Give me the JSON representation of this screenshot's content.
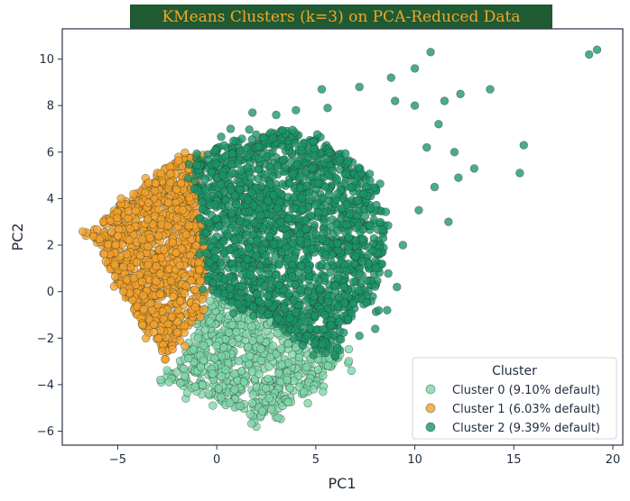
{
  "chart_data": {
    "type": "scatter",
    "title": "KMeans Clusters (k=3) on PCA-Reduced Data",
    "xlabel": "PC1",
    "ylabel": "PC2",
    "xlim": [
      -7.8,
      20.5
    ],
    "ylim": [
      -6.6,
      11.3
    ],
    "xticks": [
      "−5",
      "0",
      "5",
      "10",
      "15",
      "20"
    ],
    "xtick_values": [
      -5,
      0,
      5,
      10,
      15,
      20
    ],
    "yticks": [
      "−6",
      "−4",
      "−2",
      "0",
      "2",
      "4",
      "6",
      "8",
      "10"
    ],
    "ytick_values": [
      -6,
      -4,
      -2,
      0,
      2,
      4,
      6,
      8,
      10
    ],
    "grid": false,
    "legend": {
      "title": "Cluster",
      "placement": "lower-right"
    },
    "series": [
      {
        "name": "Cluster 0 (9.10% default)",
        "color": "#7ed6a8",
        "region": [
          [
            -0.2,
            0.3
          ],
          [
            1.5,
            -0.5
          ],
          [
            3.0,
            -0.8
          ],
          [
            5.0,
            -2.0
          ],
          [
            6.3,
            -2.7
          ],
          [
            5.0,
            -4.1
          ],
          [
            3.0,
            -5.2
          ],
          [
            2.0,
            -5.5
          ],
          [
            0.5,
            -4.8
          ],
          [
            -1.5,
            -4.2
          ],
          [
            -2.6,
            -3.6
          ],
          [
            -1.5,
            -2.5
          ],
          [
            -0.7,
            -1.0
          ]
        ],
        "cloud": [
          [
            2.0,
            -5.8
          ],
          [
            6.8,
            -3.4
          ],
          [
            -2.8,
            -3.9
          ],
          [
            -0.2,
            -4.9
          ],
          [
            4.6,
            -4.8
          ]
        ]
      },
      {
        "name": "Cluster 1 (6.03% default)",
        "color": "#f5a02a",
        "region": [
          [
            -6.4,
            2.5
          ],
          [
            -4.8,
            3.8
          ],
          [
            -3.2,
            4.9
          ],
          [
            -1.9,
            5.8
          ],
          [
            -0.9,
            5.8
          ],
          [
            -1.0,
            4.3
          ],
          [
            -0.6,
            2.5
          ],
          [
            -0.5,
            0.3
          ],
          [
            -0.9,
            -1.0
          ],
          [
            -2.0,
            -2.2
          ],
          [
            -2.5,
            -2.7
          ],
          [
            -3.5,
            -1.8
          ],
          [
            -5.0,
            0.3
          ]
        ],
        "cloud": [
          [
            -6.6,
            2.4
          ],
          [
            -5.6,
            1.3
          ],
          [
            -4.2,
            4.2
          ],
          [
            -3.0,
            5.1
          ],
          [
            -2.6,
            -2.9
          ]
        ]
      },
      {
        "name": "Cluster 2 (9.39% default)",
        "color": "#1a9468",
        "region": [
          [
            -1.1,
            5.8
          ],
          [
            0.5,
            6.4
          ],
          [
            2.0,
            6.8
          ],
          [
            3.5,
            7.0
          ],
          [
            5.0,
            6.6
          ],
          [
            6.5,
            5.8
          ],
          [
            8.0,
            4.8
          ],
          [
            8.5,
            3.2
          ],
          [
            8.4,
            1.0
          ],
          [
            7.8,
            -0.5
          ],
          [
            6.6,
            -1.2
          ],
          [
            6.2,
            -2.4
          ],
          [
            5.2,
            -2.6
          ],
          [
            4.0,
            -2.0
          ],
          [
            2.0,
            -1.0
          ],
          [
            1.0,
            -0.7
          ],
          [
            -0.4,
            0.2
          ],
          [
            -0.6,
            2.0
          ],
          [
            -1.2,
            4.5
          ]
        ],
        "cloud": [
          [
            19.2,
            10.4
          ],
          [
            18.8,
            10.2
          ],
          [
            10.8,
            10.3
          ],
          [
            10.0,
            9.6
          ],
          [
            8.8,
            9.2
          ],
          [
            7.2,
            8.8
          ],
          [
            5.3,
            8.7
          ],
          [
            9.0,
            8.2
          ],
          [
            10.0,
            8.0
          ],
          [
            11.5,
            8.2
          ],
          [
            12.3,
            8.5
          ],
          [
            13.8,
            8.7
          ],
          [
            15.5,
            6.3
          ],
          [
            15.3,
            5.1
          ],
          [
            13.0,
            5.3
          ],
          [
            12.2,
            4.9
          ],
          [
            11.7,
            3.0
          ],
          [
            11.0,
            4.5
          ],
          [
            10.2,
            3.5
          ],
          [
            9.4,
            2.0
          ],
          [
            9.1,
            0.2
          ],
          [
            8.6,
            -0.8
          ],
          [
            8.0,
            -1.6
          ],
          [
            7.2,
            -1.9
          ],
          [
            6.0,
            -2.8
          ],
          [
            5.6,
            7.9
          ],
          [
            4.0,
            7.8
          ],
          [
            3.0,
            7.6
          ],
          [
            1.8,
            7.7
          ],
          [
            0.7,
            7.0
          ],
          [
            11.2,
            7.2
          ],
          [
            10.6,
            6.2
          ],
          [
            12.0,
            6.0
          ]
        ]
      }
    ]
  }
}
